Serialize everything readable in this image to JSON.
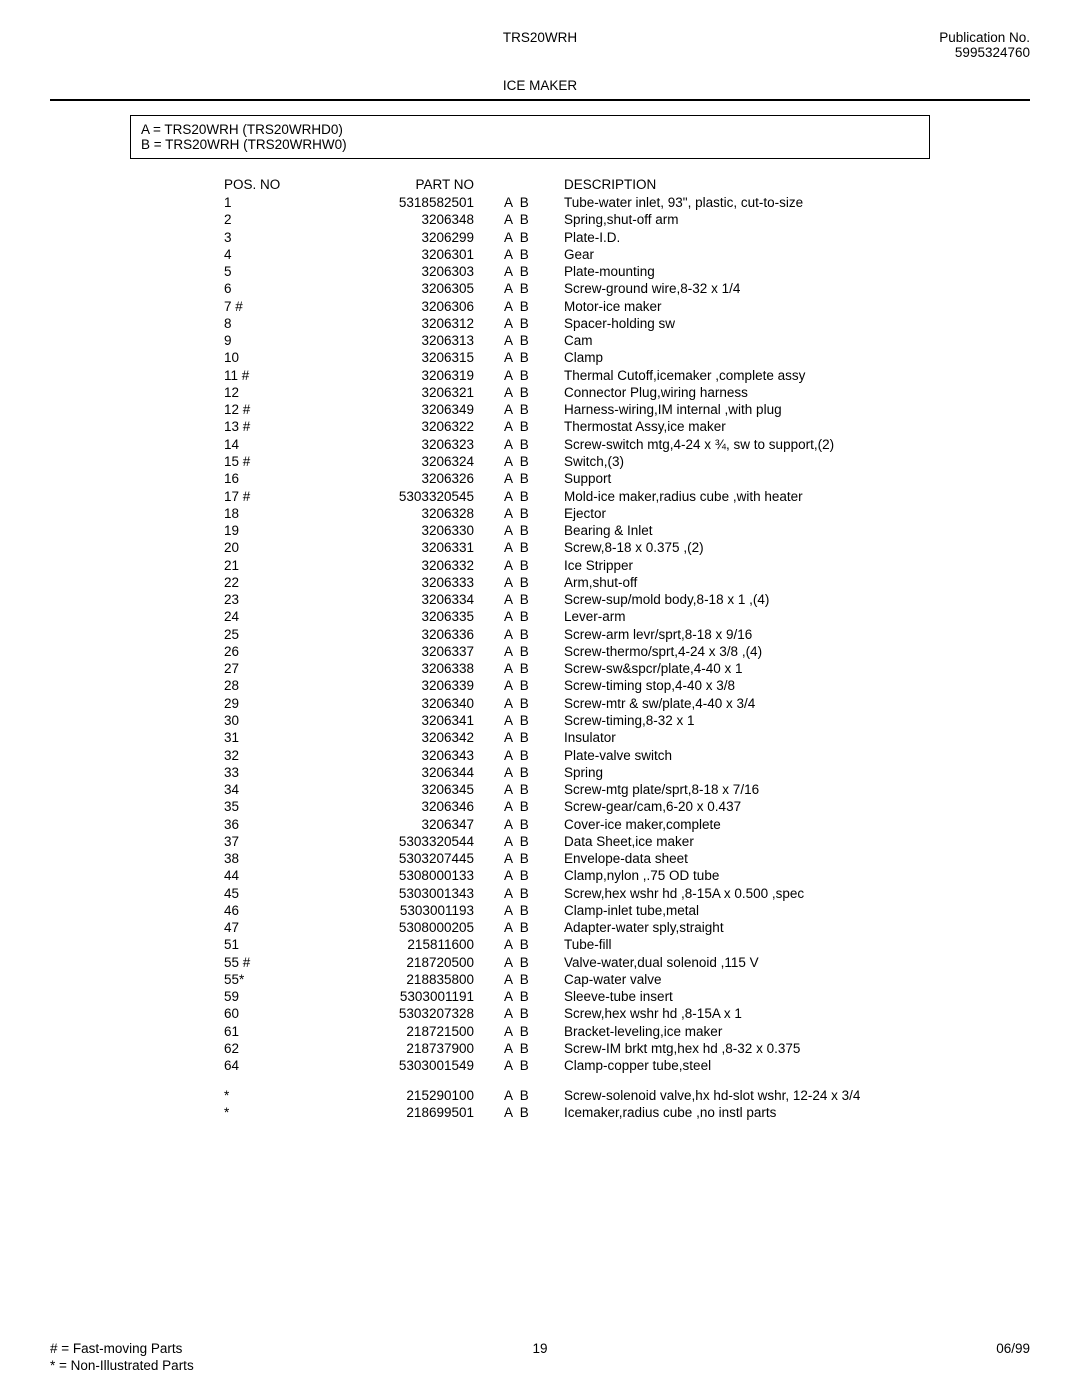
{
  "header": {
    "model": "TRS20WRH",
    "pub_label": "Publication No.",
    "pub_no": "5995324760",
    "section": "ICE MAKER"
  },
  "model_box": {
    "line_a": "A   =   TRS20WRH (TRS20WRHD0)",
    "line_b": "B   =   TRS20WRH (TRS20WRHW0)"
  },
  "columns": {
    "pos": "POS. NO",
    "part": "PART NO",
    "desc": "DESCRIPTION"
  },
  "rows": [
    {
      "pos": "1",
      "part": "5318582501",
      "ab": "A  B",
      "desc": "Tube-water inlet, 93\", plastic, cut-to-size"
    },
    {
      "pos": "2",
      "part": "3206348",
      "ab": "A  B",
      "desc": "Spring,shut-off arm"
    },
    {
      "pos": "3",
      "part": "3206299",
      "ab": "A  B",
      "desc": "Plate-I.D."
    },
    {
      "pos": "4",
      "part": "3206301",
      "ab": "A  B",
      "desc": "Gear"
    },
    {
      "pos": "5",
      "part": "3206303",
      "ab": "A  B",
      "desc": "Plate-mounting"
    },
    {
      "pos": "6",
      "part": "3206305",
      "ab": "A  B",
      "desc": "Screw-ground wire,8-32 x 1/4"
    },
    {
      "pos": "7 #",
      "part": "3206306",
      "ab": "A  B",
      "desc": "Motor-ice maker"
    },
    {
      "pos": "8",
      "part": "3206312",
      "ab": "A  B",
      "desc": "Spacer-holding sw"
    },
    {
      "pos": "9",
      "part": "3206313",
      "ab": "A  B",
      "desc": "Cam"
    },
    {
      "pos": "10",
      "part": "3206315",
      "ab": "A  B",
      "desc": "Clamp"
    },
    {
      "pos": "11 #",
      "part": "3206319",
      "ab": "A  B",
      "desc": "Thermal Cutoff,icemaker ,complete assy"
    },
    {
      "pos": "12",
      "part": "3206321",
      "ab": "A  B",
      "desc": "Connector Plug,wiring harness"
    },
    {
      "pos": "12 #",
      "part": "3206349",
      "ab": "A  B",
      "desc": "Harness-wiring,IM internal ,with plug"
    },
    {
      "pos": "13 #",
      "part": "3206322",
      "ab": "A  B",
      "desc": "Thermostat Assy,ice maker"
    },
    {
      "pos": "14",
      "part": "3206323",
      "ab": "A  B",
      "desc": "Screw-switch mtg,4-24 x ¾, sw to support,(2)"
    },
    {
      "pos": "15 #",
      "part": "3206324",
      "ab": "A  B",
      "desc": "Switch,(3)"
    },
    {
      "pos": "16",
      "part": "3206326",
      "ab": "A  B",
      "desc": "Support"
    },
    {
      "pos": "17 #",
      "part": "5303320545",
      "ab": "A  B",
      "desc": "Mold-ice maker,radius cube ,with heater"
    },
    {
      "pos": "18",
      "part": "3206328",
      "ab": "A  B",
      "desc": "Ejector"
    },
    {
      "pos": "19",
      "part": "3206330",
      "ab": "A  B",
      "desc": "Bearing & Inlet"
    },
    {
      "pos": "20",
      "part": "3206331",
      "ab": "A  B",
      "desc": "Screw,8-18 x 0.375 ,(2)"
    },
    {
      "pos": "21",
      "part": "3206332",
      "ab": "A  B",
      "desc": "Ice Stripper"
    },
    {
      "pos": "22",
      "part": "3206333",
      "ab": "A  B",
      "desc": "Arm,shut-off"
    },
    {
      "pos": "23",
      "part": "3206334",
      "ab": "A  B",
      "desc": "Screw-sup/mold body,8-18 x 1 ,(4)"
    },
    {
      "pos": "24",
      "part": "3206335",
      "ab": "A  B",
      "desc": "Lever-arm"
    },
    {
      "pos": "25",
      "part": "3206336",
      "ab": "A  B",
      "desc": "Screw-arm levr/sprt,8-18 x 9/16"
    },
    {
      "pos": "26",
      "part": "3206337",
      "ab": "A  B",
      "desc": "Screw-thermo/sprt,4-24 x 3/8 ,(4)"
    },
    {
      "pos": "27",
      "part": "3206338",
      "ab": "A  B",
      "desc": "Screw-sw&spcr/plate,4-40 x 1"
    },
    {
      "pos": "28",
      "part": "3206339",
      "ab": "A  B",
      "desc": "Screw-timing stop,4-40 x 3/8"
    },
    {
      "pos": "29",
      "part": "3206340",
      "ab": "A  B",
      "desc": "Screw-mtr & sw/plate,4-40 x 3/4"
    },
    {
      "pos": "30",
      "part": "3206341",
      "ab": "A  B",
      "desc": "Screw-timing,8-32 x 1"
    },
    {
      "pos": "31",
      "part": "3206342",
      "ab": "A  B",
      "desc": "Insulator"
    },
    {
      "pos": "32",
      "part": "3206343",
      "ab": "A  B",
      "desc": "Plate-valve switch"
    },
    {
      "pos": "33",
      "part": "3206344",
      "ab": "A  B",
      "desc": "Spring"
    },
    {
      "pos": "34",
      "part": "3206345",
      "ab": "A  B",
      "desc": "Screw-mtg plate/sprt,8-18 x 7/16"
    },
    {
      "pos": "35",
      "part": "3206346",
      "ab": "A  B",
      "desc": "Screw-gear/cam,6-20 x 0.437"
    },
    {
      "pos": "36",
      "part": "3206347",
      "ab": "A  B",
      "desc": "Cover-ice maker,complete"
    },
    {
      "pos": "37",
      "part": "5303320544",
      "ab": "A  B",
      "desc": "Data Sheet,ice maker"
    },
    {
      "pos": "38",
      "part": "5303207445",
      "ab": "A  B",
      "desc": "Envelope-data sheet"
    },
    {
      "pos": "44",
      "part": "5308000133",
      "ab": "A  B",
      "desc": "Clamp,nylon ,.75 OD tube"
    },
    {
      "pos": "45",
      "part": "5303001343",
      "ab": "A  B",
      "desc": "Screw,hex wshr hd ,8-15A x 0.500 ,spec"
    },
    {
      "pos": "46",
      "part": "5303001193",
      "ab": "A  B",
      "desc": "Clamp-inlet tube,metal"
    },
    {
      "pos": "47",
      "part": "5308000205",
      "ab": "A  B",
      "desc": "Adapter-water sply,straight"
    },
    {
      "pos": "51",
      "part": "215811600",
      "ab": "A  B",
      "desc": "Tube-fill"
    },
    {
      "pos": "55 #",
      "part": "218720500",
      "ab": "A  B",
      "desc": "Valve-water,dual solenoid ,115 V"
    },
    {
      "pos": "55*",
      "part": "218835800",
      "ab": "A  B",
      "desc": "Cap-water valve"
    },
    {
      "pos": "59",
      "part": "5303001191",
      "ab": "A  B",
      "desc": "Sleeve-tube insert"
    },
    {
      "pos": "60",
      "part": "5303207328",
      "ab": "A  B",
      "desc": "Screw,hex wshr hd ,8-15A x 1"
    },
    {
      "pos": "61",
      "part": "218721500",
      "ab": "A  B",
      "desc": "Bracket-leveling,ice maker"
    },
    {
      "pos": "62",
      "part": "218737900",
      "ab": "A  B",
      "desc": "Screw-IM brkt mtg,hex hd ,8-32 x 0.375"
    },
    {
      "pos": "64",
      "part": "5303001549",
      "ab": "A  B",
      "desc": "Clamp-copper tube,steel"
    }
  ],
  "extra_rows": [
    {
      "pos": "*",
      "part": "215290100",
      "ab": "A  B",
      "desc": "Screw-solenoid valve,hx hd-slot wshr, 12-24 x 3/4"
    },
    {
      "pos": "*",
      "part": "218699501",
      "ab": "A  B",
      "desc": "Icemaker,radius cube ,no instl parts"
    }
  ],
  "footer": {
    "note_hash": "#   =   Fast-moving Parts",
    "note_star": "*   =   Non-Illustrated Parts",
    "page": "19",
    "date": "06/99"
  }
}
